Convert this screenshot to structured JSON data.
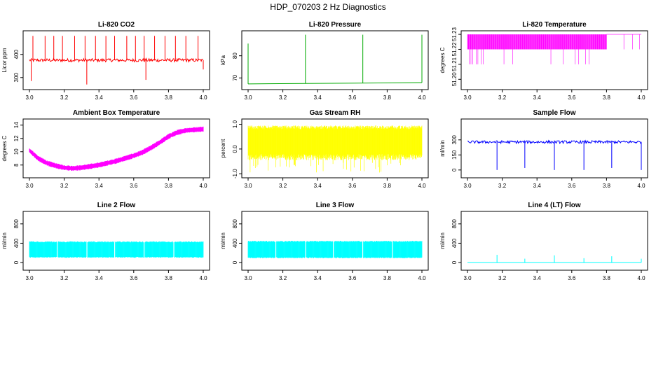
{
  "figure_title": "HDP_070203  2 Hz Diagnostics",
  "chart_data": [
    {
      "type": "line",
      "title": "Li-820 CO2",
      "ylabel": "Licor ppm",
      "color": "#ff0000",
      "xlim": [
        3.0,
        4.0
      ],
      "ylim": [
        260,
        490
      ],
      "xticks": [
        "3.0",
        "3.2",
        "3.4",
        "3.6",
        "3.8",
        "4.0"
      ],
      "yticks": [
        {
          "value": 300,
          "label": "300"
        },
        {
          "value": 400,
          "label": "400"
        }
      ],
      "series": [
        {
          "x": [
            3.0,
            4.0
          ],
          "base": 375,
          "band": [
            368,
            382
          ],
          "spikes_up": [
            3.02,
            3.09,
            3.14,
            3.19,
            3.26,
            3.32,
            3.38,
            3.44,
            3.49,
            3.56,
            3.61,
            3.66,
            3.72,
            3.78,
            3.84,
            3.9,
            3.97
          ],
          "spike_high": 480,
          "dips": [
            {
              "x": 3.01,
              "y": 285
            },
            {
              "x": 3.33,
              "y": 270
            },
            {
              "x": 3.67,
              "y": 290
            },
            {
              "x": 4.0,
              "y": 335
            }
          ]
        }
      ]
    },
    {
      "type": "line",
      "title": "Li-820 Pressure",
      "ylabel": "kPa",
      "color": "#00aa00",
      "xlim": [
        3.0,
        4.0
      ],
      "ylim": [
        66,
        90
      ],
      "xticks": [
        "3.0",
        "3.2",
        "3.4",
        "3.6",
        "3.8",
        "4.0"
      ],
      "yticks": [
        {
          "value": 70,
          "label": "70"
        },
        {
          "value": 80,
          "label": "80"
        }
      ],
      "series": [
        {
          "x": [
            3.0,
            4.0
          ],
          "y": [
            67.3,
            67.9
          ],
          "spikes": [
            {
              "x": 3.0,
              "y": 85.5
            },
            {
              "x": 3.33,
              "y": 89.5
            },
            {
              "x": 3.66,
              "y": 89.5
            },
            {
              "x": 4.0,
              "y": 89.5
            }
          ]
        }
      ]
    },
    {
      "type": "line",
      "title": "Li-820 Temperature",
      "ylabel": "degrees C",
      "color": "#ff00ff",
      "xlim": [
        3.0,
        4.0
      ],
      "ylim": [
        51.195,
        51.2305
      ],
      "xticks": [
        "3.0",
        "3.2",
        "3.4",
        "3.6",
        "3.8",
        "4.0"
      ],
      "yticks": [
        {
          "value": 51.2,
          "label": "51.20"
        },
        {
          "value": 51.21,
          "label": "51.21"
        },
        {
          "value": 51.22,
          "label": "51.22"
        },
        {
          "value": 51.23,
          "label": "51.23"
        }
      ],
      "series": [
        {
          "levels": [
            51.21,
            51.22,
            51.23
          ],
          "fill_until": 3.8,
          "drops": [
            3.01,
            3.02,
            3.03,
            3.05,
            3.06,
            3.08,
            3.09,
            3.21,
            3.26,
            3.48,
            3.55,
            3.62,
            3.64,
            3.68,
            3.7
          ],
          "late_spikes": [
            3.9,
            3.95,
            3.99
          ]
        }
      ]
    },
    {
      "type": "line",
      "title": "Ambient Box Temperature",
      "ylabel": "degrees C",
      "color": "#ff00ff",
      "xlim": [
        3.0,
        4.0
      ],
      "ylim": [
        6.5,
        14.5
      ],
      "xticks": [
        "3.0",
        "3.2",
        "3.4",
        "3.6",
        "3.8",
        "4.0"
      ],
      "yticks": [
        {
          "value": 8,
          "label": "8"
        },
        {
          "value": 10,
          "label": "10"
        },
        {
          "value": 12,
          "label": "12"
        },
        {
          "value": 14,
          "label": "14"
        }
      ],
      "series": [
        {
          "x": [
            3.0,
            3.05,
            3.1,
            3.15,
            3.2,
            3.25,
            3.3,
            3.35,
            3.4,
            3.45,
            3.5,
            3.55,
            3.6,
            3.65,
            3.7,
            3.75,
            3.8,
            3.85,
            3.9,
            3.95,
            4.0
          ],
          "y": [
            10.2,
            9.0,
            8.3,
            7.9,
            7.6,
            7.5,
            7.6,
            7.8,
            8.0,
            8.3,
            8.6,
            9.0,
            9.4,
            9.9,
            10.6,
            11.4,
            12.3,
            12.9,
            13.2,
            13.3,
            13.4
          ],
          "spread": 0.8
        }
      ]
    },
    {
      "type": "line",
      "title": "Gas Stream RH",
      "ylabel": "percent",
      "color": "#ffff00",
      "xlim": [
        3.0,
        4.0
      ],
      "ylim": [
        -1.05,
        1.1
      ],
      "xticks": [
        "3.0",
        "3.2",
        "3.4",
        "3.6",
        "3.8",
        "4.0"
      ],
      "yticks": [
        {
          "value": -1.0,
          "label": "-1.0"
        },
        {
          "value": 0.0,
          "label": "0.0"
        },
        {
          "value": 1.0,
          "label": "1.0"
        }
      ],
      "series": [
        {
          "x": [
            3.0,
            4.0
          ],
          "band": [
            -0.45,
            0.95
          ],
          "outliers_low": -0.95
        }
      ]
    },
    {
      "type": "line",
      "title": "Sample Flow",
      "ylabel": "ml/min",
      "color": "#0000ff",
      "xlim": [
        3.0,
        4.0
      ],
      "ylim": [
        -50,
        480
      ],
      "xticks": [
        "3.0",
        "3.2",
        "3.4",
        "3.6",
        "3.8",
        "4.0"
      ],
      "yticks": [
        {
          "value": 0,
          "label": "0"
        },
        {
          "value": 150,
          "label": "150"
        },
        {
          "value": 300,
          "label": "300"
        }
      ],
      "series": [
        {
          "x": [
            3.0,
            4.0
          ],
          "base": 280,
          "band": [
            265,
            292
          ],
          "dips": [
            {
              "x": 3.17,
              "y": 0
            },
            {
              "x": 3.33,
              "y": 20
            },
            {
              "x": 3.5,
              "y": 0
            },
            {
              "x": 3.67,
              "y": 0
            },
            {
              "x": 3.83,
              "y": 20
            },
            {
              "x": 4.0,
              "y": 0
            }
          ]
        }
      ]
    },
    {
      "type": "line",
      "title": "Line 2 Flow",
      "ylabel": "ml/min",
      "color": "#00ffff",
      "xlim": [
        3.0,
        4.0
      ],
      "ylim": [
        -100,
        1000
      ],
      "xticks": [
        "3.0",
        "3.2",
        "3.4",
        "3.6",
        "3.8",
        "4.0"
      ],
      "yticks": [
        {
          "value": 0,
          "label": "0"
        },
        {
          "value": 400,
          "label": "400"
        },
        {
          "value": 800,
          "label": "800"
        }
      ],
      "series": [
        {
          "x": [
            3.0,
            4.0
          ],
          "band": [
            100,
            440
          ],
          "gaps": [
            3.16,
            3.33,
            3.49,
            3.66,
            3.83
          ]
        }
      ]
    },
    {
      "type": "line",
      "title": "Line 3 Flow",
      "ylabel": "ml/min",
      "color": "#00ffff",
      "xlim": [
        3.0,
        4.0
      ],
      "ylim": [
        -100,
        1000
      ],
      "xticks": [
        "3.0",
        "3.2",
        "3.4",
        "3.6",
        "3.8",
        "4.0"
      ],
      "yticks": [
        {
          "value": 0,
          "label": "0"
        },
        {
          "value": 400,
          "label": "400"
        },
        {
          "value": 800,
          "label": "800"
        }
      ],
      "series": [
        {
          "x": [
            3.0,
            4.0
          ],
          "band": [
            90,
            450
          ],
          "gaps": [
            3.16,
            3.33,
            3.49,
            3.66,
            3.83
          ]
        }
      ]
    },
    {
      "type": "line",
      "title": "Line 4 (LT) Flow",
      "ylabel": "ml/min",
      "color": "#00ffff",
      "xlim": [
        3.0,
        4.0
      ],
      "ylim": [
        -100,
        1000
      ],
      "xticks": [
        "3.0",
        "3.2",
        "3.4",
        "3.6",
        "3.8",
        "4.0"
      ],
      "yticks": [
        {
          "value": 0,
          "label": "0"
        },
        {
          "value": 400,
          "label": "400"
        },
        {
          "value": 800,
          "label": "800"
        }
      ],
      "series": [
        {
          "x": [
            3.0,
            4.0
          ],
          "base": 0,
          "spikes": [
            {
              "x": 3.17,
              "y": 160
            },
            {
              "x": 3.33,
              "y": 80
            },
            {
              "x": 3.5,
              "y": 150
            },
            {
              "x": 3.67,
              "y": 90
            },
            {
              "x": 3.83,
              "y": 130
            },
            {
              "x": 4.0,
              "y": 80
            }
          ]
        }
      ]
    }
  ]
}
